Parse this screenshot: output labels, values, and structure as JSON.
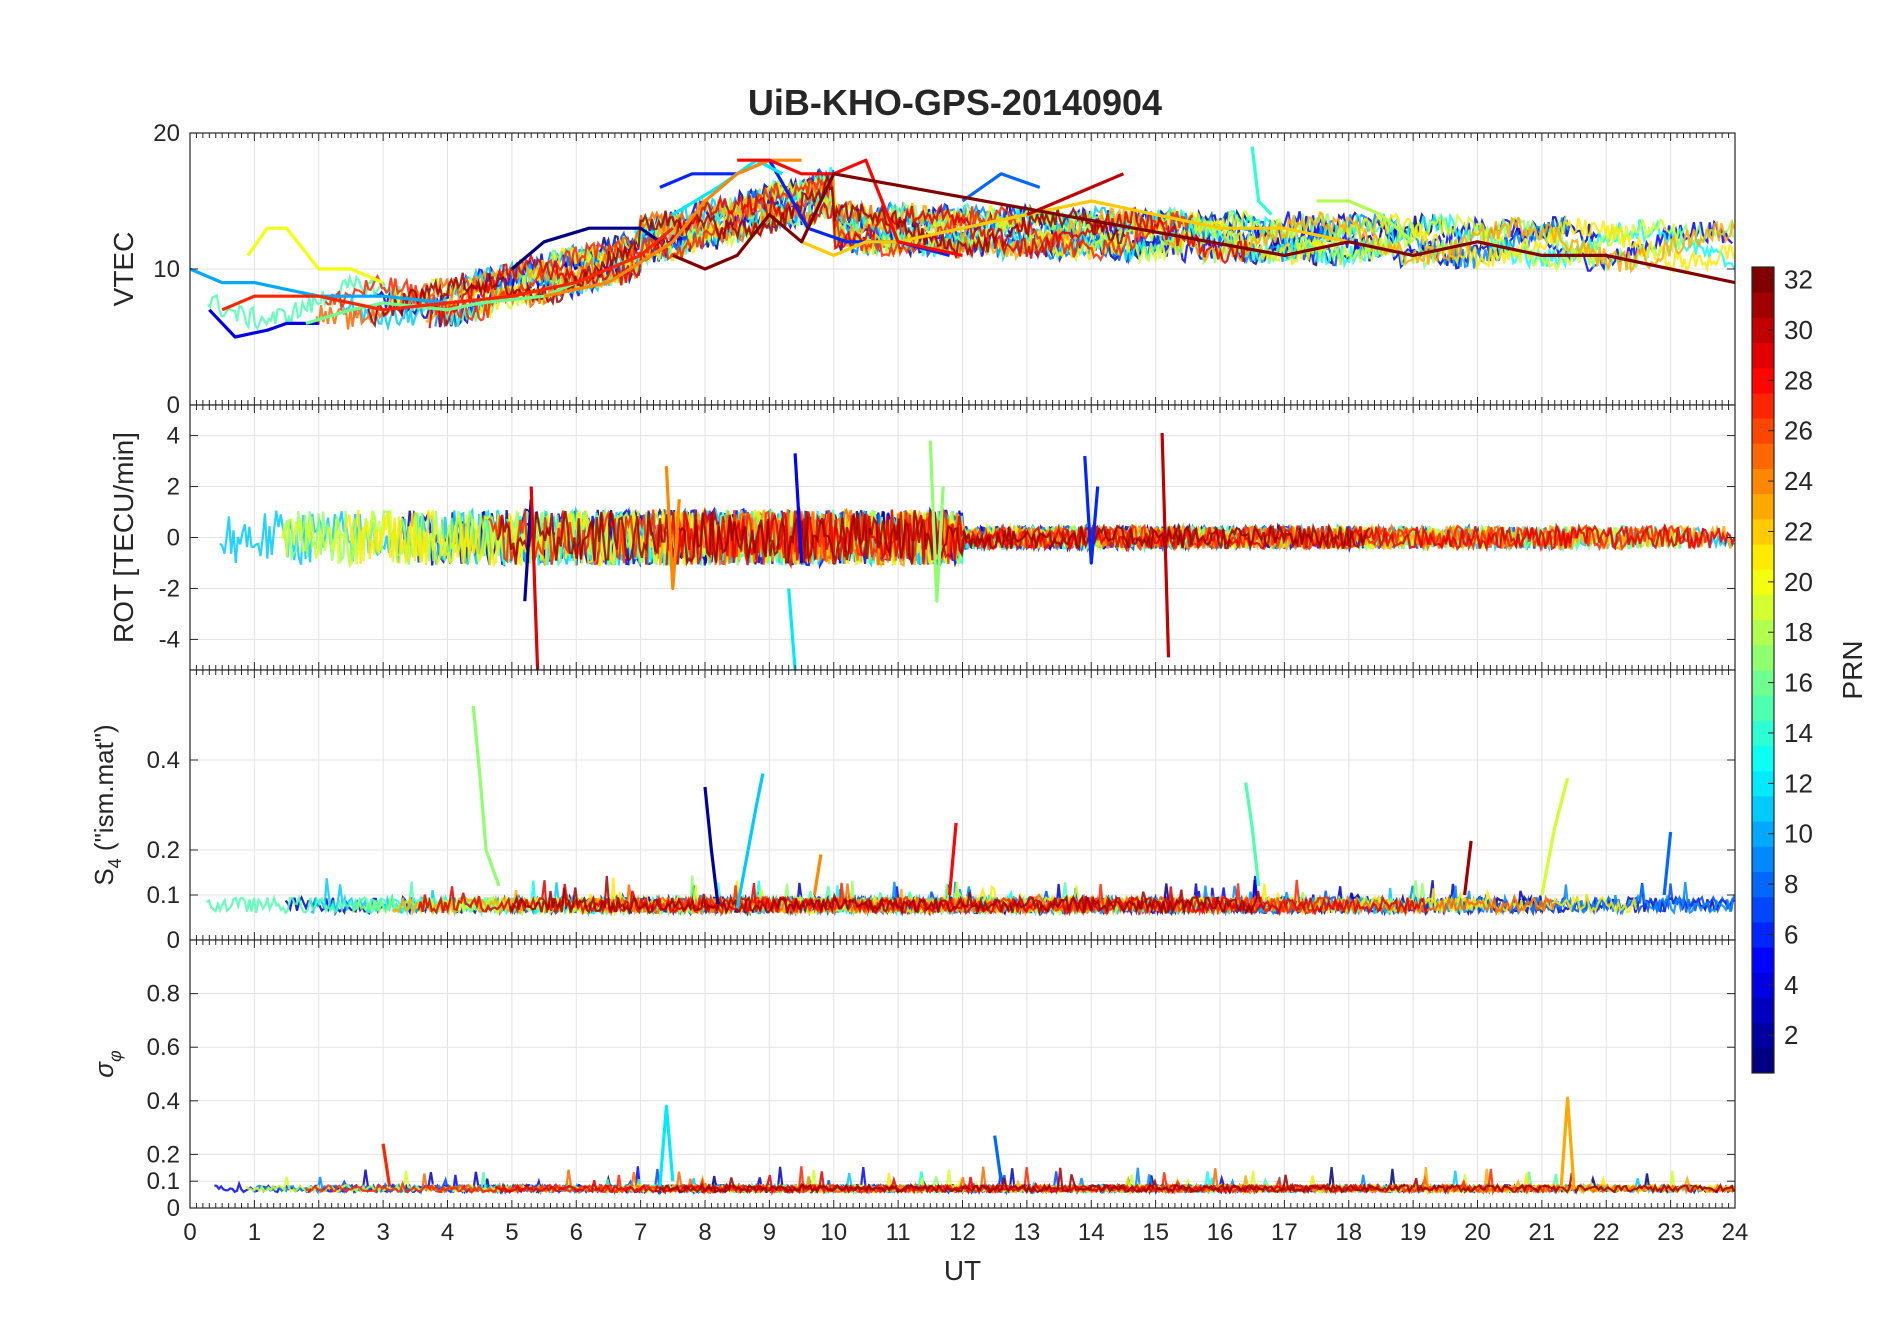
{
  "figure": {
    "title": "UiB-KHO-GPS-20140904"
  },
  "colorbar": {
    "label": "PRN",
    "ticks": [
      "2",
      "4",
      "6",
      "8",
      "10",
      "12",
      "14",
      "16",
      "18",
      "20",
      "22",
      "24",
      "26",
      "28",
      "30",
      "32"
    ],
    "range": [
      1,
      32
    ],
    "colormap": "jet"
  },
  "chart_data": [
    {
      "type": "line",
      "panel": "VTEC",
      "ylabel": "VTEC",
      "ylim": [
        0,
        20
      ],
      "yticks": [
        "0",
        "10",
        "20"
      ],
      "xlim": [
        0,
        24
      ],
      "grid": true,
      "series": [
        {
          "prn": 1,
          "x": [
            5.0,
            5.5,
            6.2,
            7.0,
            7.3
          ],
          "y": [
            10,
            12,
            13,
            13,
            12
          ]
        },
        {
          "prn": 4,
          "x": [
            0.3,
            0.7,
            1.2,
            1.5,
            2.0
          ],
          "y": [
            7,
            5,
            5.5,
            6,
            6
          ]
        },
        {
          "prn": 6,
          "x": [
            7.3,
            7.8,
            8.5,
            9.0,
            9.6,
            10.2,
            11.0,
            11.8
          ],
          "y": [
            16,
            17,
            17,
            18,
            13,
            12,
            12,
            11
          ]
        },
        {
          "prn": 8,
          "x": [
            12.0,
            12.6,
            13.2
          ],
          "y": [
            15,
            17,
            16
          ]
        },
        {
          "prn": 10,
          "x": [
            0.0,
            0.5,
            1.0,
            1.5,
            2.0,
            3.0,
            4.0
          ],
          "y": [
            10,
            9,
            9,
            8.5,
            8,
            8,
            7.5
          ]
        },
        {
          "prn": 12,
          "x": [
            7.5,
            8.2,
            8.8,
            9.2
          ],
          "y": [
            14,
            16,
            18,
            17
          ]
        },
        {
          "prn": 14,
          "x": [
            16.5,
            16.6,
            16.8
          ],
          "y": [
            19,
            15,
            14
          ]
        },
        {
          "prn": 16,
          "x": [
            1.8,
            2.5,
            3.0,
            4.0,
            4.5,
            5.5,
            6.0
          ],
          "y": [
            6,
            7,
            7.5,
            7,
            7.5,
            8,
            9
          ]
        },
        {
          "prn": 18,
          "x": [
            17.5,
            18.0,
            18.5,
            19.0
          ],
          "y": [
            15,
            15,
            14,
            12
          ]
        },
        {
          "prn": 20,
          "x": [
            0.9,
            1.2,
            1.5,
            2.0,
            2.5,
            3.0
          ],
          "y": [
            11,
            13,
            13,
            10,
            10,
            9
          ]
        },
        {
          "prn": 22,
          "x": [
            9.5,
            10.0,
            10.5,
            11.0,
            12.0,
            13.0,
            14.0,
            15.0,
            16.0,
            17.0,
            18.0
          ],
          "y": [
            12,
            11,
            12,
            12,
            13,
            14,
            15,
            14,
            13,
            13,
            12
          ]
        },
        {
          "prn": 24,
          "x": [
            5.5,
            6.5,
            7.5,
            8.0,
            8.5,
            9.0,
            9.5
          ],
          "y": [
            8,
            9,
            12,
            15,
            17,
            18,
            18
          ]
        },
        {
          "prn": 27,
          "x": [
            0.5,
            1.0,
            2.0,
            3.0,
            4.0,
            5.0,
            6.0,
            7.0,
            7.5
          ],
          "y": [
            7,
            8,
            8,
            7,
            7.5,
            8,
            9,
            11,
            13
          ]
        },
        {
          "prn": 28,
          "x": [
            8.5,
            9.0,
            9.5,
            10.0,
            10.5,
            11.0,
            12.0
          ],
          "y": [
            18,
            18,
            17,
            17,
            18,
            12,
            11
          ]
        },
        {
          "prn": 30,
          "x": [
            13.0,
            13.5,
            14.0,
            14.5
          ],
          "y": [
            14,
            15,
            16,
            17
          ]
        },
        {
          "prn": 32,
          "x": [
            7.5,
            8.0,
            8.5,
            9.0,
            9.5,
            10.0,
            17.0,
            18.0,
            19.0,
            20.0,
            21.0,
            22.0,
            23.0,
            24.0
          ],
          "y": [
            11,
            10,
            11,
            14,
            12,
            17,
            11,
            12,
            11,
            12,
            11,
            11,
            10,
            9
          ]
        }
      ]
    },
    {
      "type": "line",
      "panel": "ROT",
      "ylabel": "ROT [TECU/min]",
      "ylim": [
        -5.2,
        5.2
      ],
      "yticks": [
        "-4",
        "-2",
        "0",
        "2",
        "4"
      ],
      "xlim": [
        0,
        24
      ],
      "grid": true,
      "series": [
        {
          "prn": 2,
          "x": [
            5.2,
            5.3
          ],
          "y": [
            -2.5,
            1.5
          ]
        },
        {
          "prn": 5,
          "x": [
            9.4,
            9.5
          ],
          "y": [
            3.3,
            -1.0
          ]
        },
        {
          "prn": 6,
          "x": [
            13.9,
            14.0,
            14.1
          ],
          "y": [
            3.2,
            -1.0,
            2.0
          ]
        },
        {
          "prn": 12,
          "x": [
            9.3,
            9.4
          ],
          "y": [
            -2.0,
            -5.2
          ]
        },
        {
          "prn": 17,
          "x": [
            11.5,
            11.6,
            11.7
          ],
          "y": [
            3.8,
            -2.5,
            2.0
          ]
        },
        {
          "prn": 24,
          "x": [
            7.4,
            7.5,
            7.6
          ],
          "y": [
            2.8,
            -2.0,
            1.5
          ]
        },
        {
          "prn": 29,
          "x": [
            5.3,
            5.4
          ],
          "y": [
            2.0,
            -5.2
          ]
        },
        {
          "prn": 30,
          "x": [
            15.1,
            15.2
          ],
          "y": [
            4.1,
            -4.7
          ]
        }
      ]
    },
    {
      "type": "line",
      "panel": "S4",
      "ylabel": "S4 (\"ism.mat\")",
      "ylim": [
        0,
        0.6
      ],
      "yticks": [
        "0",
        "0.1",
        "0.2",
        "0.4"
      ],
      "xlim": [
        0,
        24
      ],
      "grid": true,
      "series": [
        {
          "prn": 2,
          "x": [
            8.0,
            8.1,
            8.2
          ],
          "y": [
            0.34,
            0.2,
            0.08
          ]
        },
        {
          "prn": 11,
          "x": [
            8.5,
            8.8,
            8.9
          ],
          "y": [
            0.07,
            0.3,
            0.37
          ]
        },
        {
          "prn": 15,
          "x": [
            16.4,
            16.5,
            16.6
          ],
          "y": [
            0.35,
            0.25,
            0.12
          ]
        },
        {
          "prn": 17,
          "x": [
            4.4,
            4.5,
            4.6,
            4.8
          ],
          "y": [
            0.52,
            0.37,
            0.2,
            0.12
          ]
        },
        {
          "prn": 19,
          "x": [
            21.0,
            21.2,
            21.4
          ],
          "y": [
            0.1,
            0.25,
            0.36
          ]
        },
        {
          "prn": 24,
          "x": [
            9.7,
            9.8
          ],
          "y": [
            0.1,
            0.19
          ]
        },
        {
          "prn": 28,
          "x": [
            11.8,
            11.9
          ],
          "y": [
            0.1,
            0.26
          ]
        },
        {
          "prn": 31,
          "x": [
            19.8,
            19.9
          ],
          "y": [
            0.1,
            0.22
          ]
        },
        {
          "prn": 8,
          "x": [
            22.9,
            23.0
          ],
          "y": [
            0.1,
            0.24
          ]
        }
      ]
    },
    {
      "type": "line",
      "panel": "sigma_phi",
      "ylabel": "σφ",
      "ylim": [
        0,
        1
      ],
      "yticks": [
        "0",
        "0.1",
        "0.2",
        "0.4",
        "0.6",
        "0.8"
      ],
      "xlim": [
        0,
        24
      ],
      "xlabel": "UT",
      "xticks": [
        "0",
        "1",
        "2",
        "3",
        "4",
        "5",
        "6",
        "7",
        "8",
        "9",
        "10",
        "11",
        "12",
        "13",
        "14",
        "15",
        "16",
        "17",
        "18",
        "19",
        "20",
        "21",
        "22",
        "23",
        "24"
      ],
      "grid": true,
      "series": [
        {
          "prn": 12,
          "x": [
            7.3,
            7.4,
            7.5
          ],
          "y": [
            0.08,
            0.38,
            0.1
          ]
        },
        {
          "prn": 23,
          "x": [
            21.3,
            21.4,
            21.5
          ],
          "y": [
            0.08,
            0.41,
            0.07
          ]
        },
        {
          "prn": 27,
          "x": [
            3.0,
            3.1
          ],
          "y": [
            0.24,
            0.08
          ]
        },
        {
          "prn": 8,
          "x": [
            12.5,
            12.6
          ],
          "y": [
            0.27,
            0.1
          ]
        }
      ]
    }
  ]
}
